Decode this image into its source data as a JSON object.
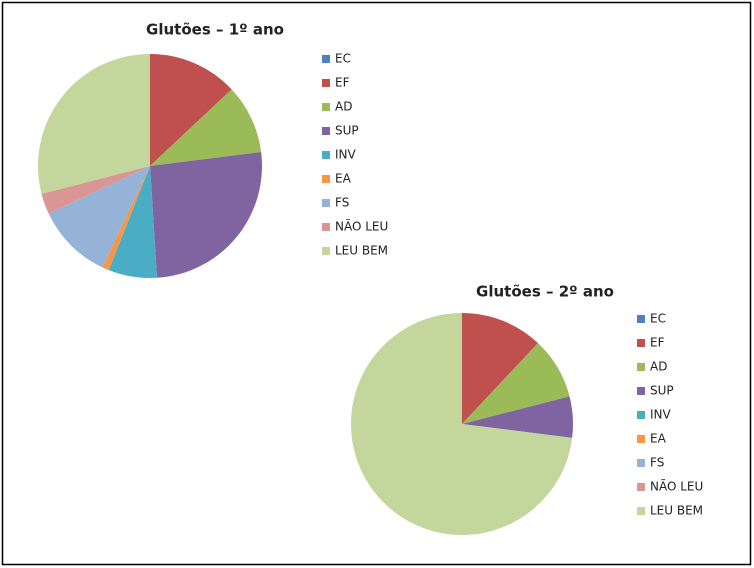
{
  "chart_data": [
    {
      "type": "pie",
      "title": "Glutões – 1º ano",
      "categories": [
        "EC",
        "EF",
        "AD",
        "SUP",
        "INV",
        "EA",
        "FS",
        "NÃO LEU",
        "LEU BEM"
      ],
      "values": [
        0,
        13,
        10,
        26,
        7,
        1,
        11,
        3,
        29
      ],
      "colors": [
        "#4F81BD",
        "#C0504D",
        "#9BBB59",
        "#8064A2",
        "#4BACC6",
        "#F79646",
        "#95B3D7",
        "#D99694",
        "#C3D69B"
      ],
      "legend": "right"
    },
    {
      "type": "pie",
      "title": "Glutões – 2º ano",
      "categories": [
        "EC",
        "EF",
        "AD",
        "SUP",
        "INV",
        "EA",
        "FS",
        "NÃO LEU",
        "LEU BEM"
      ],
      "values": [
        0,
        12,
        9,
        6,
        0,
        0,
        0,
        0,
        73
      ],
      "colors": [
        "#4F81BD",
        "#C0504D",
        "#9BBB59",
        "#8064A2",
        "#4BACC6",
        "#F79646",
        "#95B3D7",
        "#D99694",
        "#C3D69B"
      ],
      "legend": "right"
    }
  ]
}
